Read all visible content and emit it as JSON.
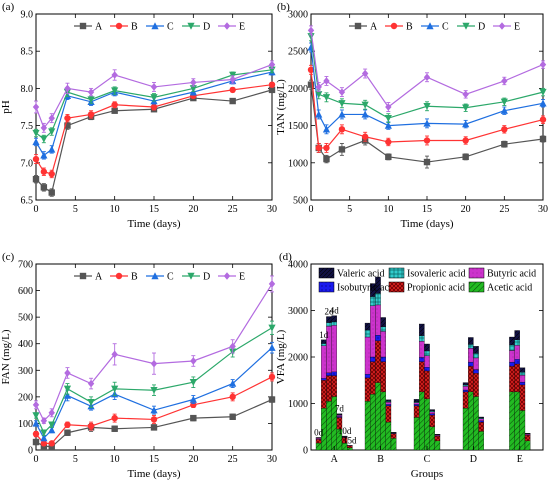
{
  "chart_data": [
    {
      "type": "line",
      "panel_label": "(a)",
      "xlabel": "Time (days)",
      "ylabel": "pH",
      "xlim": [
        0,
        30
      ],
      "ylim": [
        6.5,
        9.0
      ],
      "xticks": [
        0,
        5,
        10,
        15,
        20,
        25,
        30
      ],
      "yticks": [
        6.5,
        7.0,
        7.5,
        8.0,
        8.5,
        9.0
      ],
      "ytick_labels": [
        "6.5",
        "7.0",
        "7.5",
        "8.0",
        "8.5",
        "9.0"
      ],
      "legend_position": "top-center",
      "x": [
        0,
        1,
        2,
        4,
        7,
        10,
        15,
        20,
        25,
        30
      ],
      "series": [
        {
          "name": "A",
          "color": "#555555",
          "marker": "square",
          "values": [
            6.78,
            6.67,
            6.6,
            7.5,
            7.62,
            7.7,
            7.72,
            7.87,
            7.83,
            7.98
          ],
          "errors": [
            0.05,
            0.05,
            0.05,
            0.05,
            0.04,
            0.03,
            0.03,
            0.03,
            0.03,
            0.03
          ]
        },
        {
          "name": "B",
          "color": "#ff3333",
          "marker": "circle",
          "values": [
            7.05,
            6.88,
            6.85,
            7.6,
            7.65,
            7.78,
            7.75,
            7.9,
            7.98,
            8.05
          ],
          "errors": [
            0.06,
            0.05,
            0.05,
            0.05,
            0.05,
            0.04,
            0.04,
            0.03,
            0.03,
            0.03
          ]
        },
        {
          "name": "C",
          "color": "#1f6fe0",
          "marker": "triangle-up",
          "values": [
            7.28,
            7.1,
            7.18,
            7.9,
            7.82,
            7.95,
            7.83,
            7.95,
            8.1,
            8.22
          ],
          "errors": [
            0.05,
            0.05,
            0.05,
            0.05,
            0.05,
            0.05,
            0.04,
            0.04,
            0.04,
            0.04
          ]
        },
        {
          "name": "D",
          "color": "#2ca86a",
          "marker": "triangle-down",
          "values": [
            7.4,
            7.32,
            7.42,
            7.95,
            7.85,
            7.97,
            7.88,
            8.0,
            8.18,
            8.25
          ],
          "errors": [
            0.05,
            0.05,
            0.05,
            0.06,
            0.05,
            0.05,
            0.05,
            0.04,
            0.04,
            0.04
          ]
        },
        {
          "name": "E",
          "color": "#b36be0",
          "marker": "diamond",
          "values": [
            7.75,
            7.47,
            7.6,
            8.0,
            7.95,
            8.18,
            8.02,
            8.08,
            8.12,
            8.32
          ],
          "errors": [
            0.08,
            0.06,
            0.06,
            0.07,
            0.05,
            0.07,
            0.06,
            0.05,
            0.05,
            0.05
          ]
        }
      ]
    },
    {
      "type": "line",
      "panel_label": "(b)",
      "xlabel": "Time (days)",
      "ylabel": "TAN (mg/L)",
      "xlim": [
        0,
        30
      ],
      "ylim": [
        500,
        3000
      ],
      "xticks": [
        0,
        5,
        10,
        15,
        20,
        25,
        30
      ],
      "yticks": [
        500,
        1000,
        1500,
        2000,
        2500,
        3000
      ],
      "ytick_labels": [
        "500",
        "1000",
        "1500",
        "2000",
        "2500",
        "3000"
      ],
      "legend_position": "top-center",
      "x": [
        0,
        1,
        2,
        4,
        7,
        10,
        15,
        20,
        25,
        30
      ],
      "series": [
        {
          "name": "A",
          "color": "#555555",
          "marker": "square",
          "values": [
            2050,
            1200,
            1050,
            1180,
            1300,
            1080,
            1010,
            1080,
            1250,
            1320
          ],
          "errors": [
            60,
            60,
            50,
            80,
            60,
            40,
            80,
            40,
            40,
            40
          ]
        },
        {
          "name": "B",
          "color": "#ff3333",
          "marker": "circle",
          "values": [
            2250,
            1200,
            1200,
            1450,
            1350,
            1280,
            1300,
            1300,
            1450,
            1580
          ],
          "errors": [
            60,
            60,
            60,
            60,
            60,
            50,
            60,
            50,
            50,
            50
          ]
        },
        {
          "name": "C",
          "color": "#1f6fe0",
          "marker": "triangle-up",
          "values": [
            2550,
            1650,
            1450,
            1650,
            1650,
            1500,
            1530,
            1520,
            1700,
            1800
          ],
          "errors": [
            60,
            60,
            60,
            60,
            60,
            50,
            60,
            50,
            50,
            50
          ]
        },
        {
          "name": "D",
          "color": "#2ca86a",
          "marker": "triangle-down",
          "values": [
            2700,
            1920,
            1880,
            1800,
            1780,
            1600,
            1760,
            1740,
            1820,
            1950
          ],
          "errors": [
            60,
            60,
            60,
            60,
            60,
            60,
            60,
            50,
            50,
            50
          ]
        },
        {
          "name": "E",
          "color": "#b36be0",
          "marker": "diamond",
          "values": [
            2780,
            2020,
            2100,
            1950,
            2200,
            1750,
            2150,
            1920,
            2100,
            2320
          ],
          "errors": [
            60,
            60,
            60,
            60,
            60,
            60,
            60,
            50,
            50,
            50
          ]
        }
      ]
    },
    {
      "type": "line",
      "panel_label": "(c)",
      "xlabel": "Time (days)",
      "ylabel": "FAN (mg/L)",
      "xlim": [
        0,
        30
      ],
      "ylim": [
        0,
        700
      ],
      "xticks": [
        0,
        5,
        10,
        15,
        20,
        25,
        30
      ],
      "yticks": [
        0,
        100,
        200,
        300,
        400,
        500,
        600,
        700
      ],
      "ytick_labels": [
        "0",
        "100",
        "200",
        "300",
        "400",
        "500",
        "600",
        "700"
      ],
      "legend_position": "top-center",
      "x": [
        0,
        1,
        2,
        4,
        7,
        10,
        15,
        20,
        25,
        30
      ],
      "series": [
        {
          "name": "A",
          "color": "#555555",
          "marker": "square",
          "values": [
            30,
            15,
            12,
            65,
            85,
            80,
            85,
            120,
            125,
            190
          ],
          "errors": [
            10,
            5,
            5,
            10,
            15,
            10,
            10,
            10,
            10,
            10
          ]
        },
        {
          "name": "B",
          "color": "#ff3333",
          "marker": "circle",
          "values": [
            60,
            25,
            25,
            95,
            90,
            120,
            115,
            170,
            200,
            275
          ],
          "errors": [
            10,
            5,
            5,
            10,
            15,
            15,
            15,
            10,
            15,
            15
          ]
        },
        {
          "name": "C",
          "color": "#1f6fe0",
          "marker": "triangle-up",
          "values": [
            100,
            45,
            75,
            205,
            165,
            210,
            150,
            190,
            250,
            385
          ],
          "errors": [
            10,
            10,
            10,
            20,
            15,
            20,
            15,
            15,
            15,
            20
          ]
        },
        {
          "name": "D",
          "color": "#2ca86a",
          "marker": "triangle-down",
          "values": [
            130,
            65,
            95,
            230,
            180,
            230,
            225,
            255,
            370,
            460
          ],
          "errors": [
            10,
            10,
            10,
            20,
            20,
            25,
            20,
            20,
            20,
            25
          ]
        },
        {
          "name": "E",
          "color": "#b36be0",
          "marker": "diamond",
          "values": [
            170,
            110,
            140,
            290,
            250,
            360,
            325,
            335,
            390,
            625
          ],
          "errors": [
            15,
            10,
            15,
            20,
            20,
            40,
            40,
            20,
            25,
            30
          ]
        }
      ]
    },
    {
      "type": "bar",
      "stacked": true,
      "panel_label": "(d)",
      "xlabel": "Groups",
      "ylabel": "VFA (mg/L)",
      "ylim": [
        0,
        4000
      ],
      "yticks": [
        0,
        1000,
        2000,
        3000,
        4000
      ],
      "ytick_labels": [
        "0",
        "1000",
        "2000",
        "3000",
        "4000"
      ],
      "legend_position": "top",
      "categories": [
        "A",
        "B",
        "C",
        "D",
        "E"
      ],
      "days": [
        "0d",
        "1d",
        "2d",
        "4d",
        "7d",
        "10d",
        "15d"
      ],
      "day_labels_group": "A",
      "components": [
        {
          "name": "Acetic acid",
          "color": "#22bb22"
        },
        {
          "name": "Propionic acid",
          "color": "#dd2222"
        },
        {
          "name": "Isobutyric acid",
          "color": "#1a1aee"
        },
        {
          "name": "Butyric acid",
          "color": "#cc33cc"
        },
        {
          "name": "Isovaleric acid",
          "color": "#33cccc"
        },
        {
          "name": "Valeric acid",
          "color": "#111144"
        }
      ],
      "groups": [
        {
          "name": "A",
          "bars": [
            [
              150,
              80,
              10,
              20,
              5,
              5
            ],
            [
              900,
              600,
              40,
              700,
              50,
              80
            ],
            [
              1050,
              550,
              60,
              1000,
              80,
              130
            ],
            [
              1150,
              450,
              80,
              1000,
              80,
              130
            ],
            [
              450,
              250,
              20,
              30,
              10,
              20
            ],
            [
              150,
              120,
              10,
              10,
              5,
              5
            ],
            [
              50,
              40,
              5,
              5,
              0,
              0
            ]
          ]
        },
        {
          "name": "B",
          "bars": [
            [
              1050,
              500,
              80,
              800,
              150,
              150
            ],
            [
              1200,
              700,
              100,
              1100,
              200,
              280
            ],
            [
              1450,
              900,
              120,
              650,
              250,
              350
            ],
            [
              1250,
              650,
              100,
              550,
              100,
              200
            ],
            [
              600,
              350,
              30,
              50,
              20,
              30
            ],
            [
              250,
              100,
              10,
              10,
              5,
              5
            ]
          ]
        },
        {
          "name": "C",
          "bars": [
            [
              700,
              250,
              30,
              40,
              20,
              50
            ],
            [
              1250,
              650,
              90,
              350,
              120,
              250
            ],
            [
              1100,
              600,
              80,
              250,
              100,
              150
            ],
            [
              500,
              250,
              30,
              40,
              20,
              30
            ],
            [
              200,
              100,
              10,
              20,
              5,
              5
            ]
          ]
        },
        {
          "name": "D",
          "bars": [
            [
              900,
              350,
              40,
              80,
              30,
              50
            ],
            [
              1250,
              550,
              90,
              300,
              80,
              150
            ],
            [
              1150,
              500,
              80,
              250,
              100,
              150
            ],
            [
              400,
              200,
              30,
              40,
              20,
              20
            ]
          ]
        },
        {
          "name": "E",
          "bars": [
            [
              1250,
              550,
              90,
              250,
              120,
              170
            ],
            [
              1250,
              600,
              100,
              300,
              120,
              200
            ],
            [
              850,
              550,
              60,
              150,
              60,
              100
            ],
            [
              200,
              120,
              10,
              20,
              5,
              5
            ]
          ]
        }
      ]
    }
  ]
}
